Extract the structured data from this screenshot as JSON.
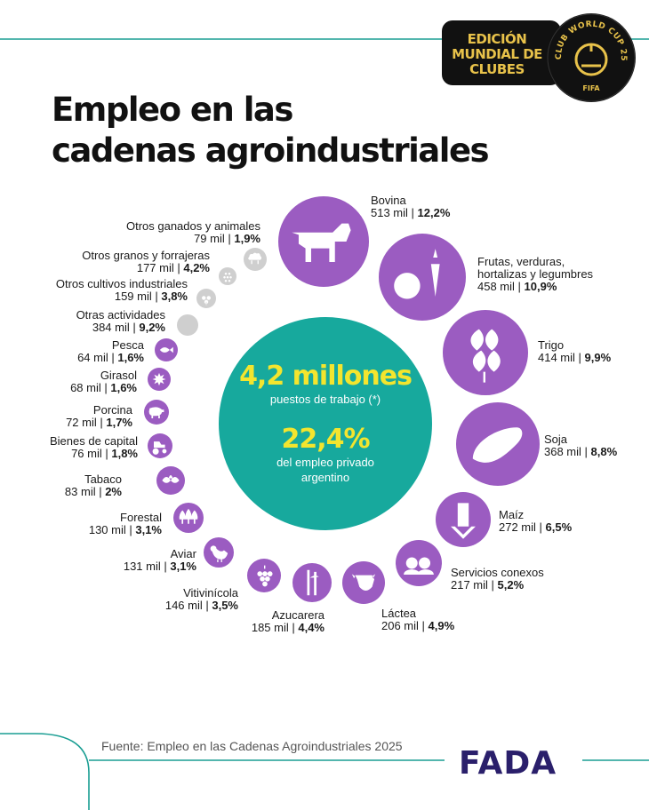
{
  "header": {
    "badge_lines": [
      "EDICIÓN",
      "MUNDIAL DE",
      "CLUBES"
    ],
    "seal_ring_text": "CLUB WORLD CUP 25",
    "seal_bottom_text": "FIFA"
  },
  "title_lines": [
    "Empleo en las",
    "cadenas agroindustriales"
  ],
  "center": {
    "total": "4,2 millones",
    "total_caption": "puestos de trabajo (*)",
    "share": "22,4%",
    "share_caption_lines": [
      "del empleo privado",
      "argentino"
    ]
  },
  "colors": {
    "circle": "#9b5cc1",
    "other": "#cfcfcf",
    "center": "#17a99d",
    "accent": "#f3e52e",
    "teal_line": "#1a9e93",
    "logo": "#2a1f6b"
  },
  "chart_data": {
    "type": "bubble",
    "title": "Empleo en las cadenas agroindustriales",
    "unit": "mil puestos de trabajo",
    "total": "4,2 millones",
    "total_share": "22,4%",
    "items": [
      {
        "name": "Bovina",
        "jobs": 513,
        "value_text": "513 mil",
        "share_text": "12,2%",
        "share": 12.2,
        "icon": "cow-icon"
      },
      {
        "name": "Frutas, verduras, hortalizas y legumbres",
        "name_lines": [
          "Frutas, verduras,",
          "hortalizas y legumbres"
        ],
        "jobs": 458,
        "value_text": "458 mil",
        "share_text": "10,9%",
        "share": 10.9,
        "icon": "fruits-vegetables-icon"
      },
      {
        "name": "Trigo",
        "jobs": 414,
        "value_text": "414 mil",
        "share_text": "9,9%",
        "share": 9.9,
        "icon": "wheat-icon"
      },
      {
        "name": "Soja",
        "jobs": 368,
        "value_text": "368 mil",
        "share_text": "8,8%",
        "share": 8.8,
        "icon": "soybean-icon"
      },
      {
        "name": "Maíz",
        "jobs": 272,
        "value_text": "272 mil",
        "share_text": "6,5%",
        "share": 6.5,
        "icon": "corn-icon"
      },
      {
        "name": "Servicios conexos",
        "jobs": 217,
        "value_text": "217 mil",
        "share_text": "5,2%",
        "share": 5.2,
        "icon": "people-icon"
      },
      {
        "name": "Láctea",
        "jobs": 206,
        "value_text": "206 mil",
        "share_text": "4,9%",
        "share": 4.9,
        "icon": "dairy-cow-icon"
      },
      {
        "name": "Azucarera",
        "jobs": 185,
        "value_text": "185 mil",
        "share_text": "4,4%",
        "share": 4.4,
        "icon": "sugarcane-icon"
      },
      {
        "name": "Vitivinícola",
        "jobs": 146,
        "value_text": "146 mil",
        "share_text": "3,5%",
        "share": 3.5,
        "icon": "grapes-icon"
      },
      {
        "name": "Aviar",
        "jobs": 131,
        "value_text": "131 mil",
        "share_text": "3,1%",
        "share": 3.1,
        "icon": "chicken-icon"
      },
      {
        "name": "Forestal",
        "jobs": 130,
        "value_text": "130 mil",
        "share_text": "3,1%",
        "share": 3.1,
        "icon": "trees-icon"
      },
      {
        "name": "Tabaco",
        "jobs": 83,
        "value_text": "83 mil",
        "share_text": "2%",
        "share": 2.0,
        "icon": "tobacco-leaf-icon"
      },
      {
        "name": "Bienes de capital",
        "jobs": 76,
        "value_text": "76 mil",
        "share_text": "1,8%",
        "share": 1.8,
        "icon": "tractor-icon"
      },
      {
        "name": "Porcina",
        "jobs": 72,
        "value_text": "72 mil",
        "share_text": "1,7%",
        "share": 1.7,
        "icon": "pig-icon"
      },
      {
        "name": "Girasol",
        "jobs": 68,
        "value_text": "68 mil",
        "share_text": "1,6%",
        "share": 1.6,
        "icon": "sunflower-icon"
      },
      {
        "name": "Pesca",
        "jobs": 64,
        "value_text": "64 mil",
        "share_text": "1,6%",
        "share": 1.6,
        "icon": "fish-icon"
      },
      {
        "name": "Otras actividades",
        "jobs": 384,
        "value_text": "384 mil",
        "share_text": "9,2%",
        "share": 9.2,
        "icon": "",
        "gray": true
      },
      {
        "name": "Otros cultivos industriales",
        "jobs": 159,
        "value_text": "159 mil",
        "share_text": "3,8%",
        "share": 3.8,
        "icon": "cotton-icon",
        "gray": true
      },
      {
        "name": "Otros granos y forrajeras",
        "jobs": 177,
        "value_text": "177 mil",
        "share_text": "4,2%",
        "share": 4.2,
        "icon": "grain-icon",
        "gray": true
      },
      {
        "name": "Otros ganados y animales",
        "jobs": 79,
        "value_text": "79 mil",
        "share_text": "1,9%",
        "share": 1.9,
        "icon": "sheep-icon",
        "gray": true
      }
    ]
  },
  "footer": {
    "source": "Fuente: Empleo en las Cadenas Agroindustriales 2025",
    "logo_text": "FADA"
  }
}
